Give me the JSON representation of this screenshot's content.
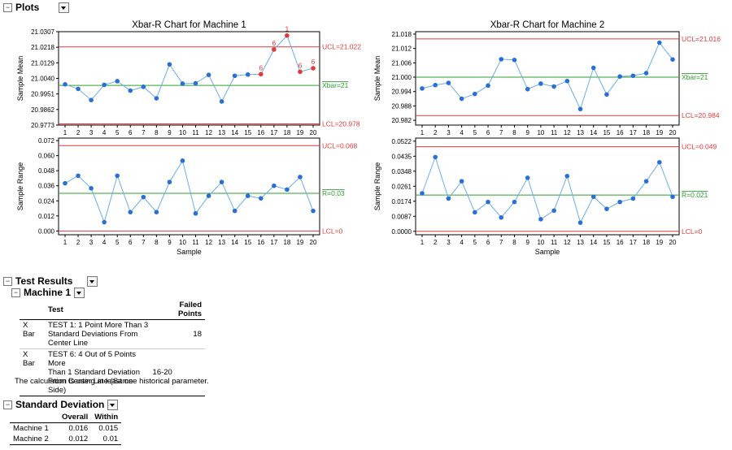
{
  "sections": {
    "plots": "Plots",
    "test_results": "Test Results",
    "standard_deviation": "Standard Deviation"
  },
  "test_results": {
    "group": "Machine 1",
    "headers": [
      "",
      "Test",
      "Failed Points"
    ],
    "rows": [
      {
        "chart": "X Bar",
        "test_lines": [
          "TEST 1: 1 Point More Than 3",
          "Standard Deviations From",
          "Center Line"
        ],
        "failed": "18"
      },
      {
        "chart": "X Bar",
        "test_lines": [
          "TEST 6: 4 Out of 5 Points More",
          "Than 1 Standard Deviation",
          "From Center Line (Same Side)"
        ],
        "failed": "16-20"
      }
    ],
    "note": "The calculation is using at least one historical parameter."
  },
  "std_dev": {
    "headers": [
      "",
      "Overall",
      "Within"
    ],
    "rows": [
      {
        "label": "Machine 1",
        "overall": "0.016",
        "within": "0.015"
      },
      {
        "label": "Machine 2",
        "overall": "0.012",
        "within": "0.01"
      }
    ]
  },
  "colors": {
    "point": "#2a6fd6",
    "line": "#6aaee8",
    "limit": "#e03a3a",
    "center": "#2ca02c",
    "fail": "#e03a3a"
  },
  "chart_data": [
    {
      "type": "line",
      "title": "Xbar-R Chart for Machine 1",
      "ylabel": "Sample Mean",
      "x": [
        1,
        2,
        3,
        4,
        5,
        6,
        7,
        8,
        9,
        10,
        11,
        12,
        13,
        14,
        15,
        16,
        17,
        18,
        19,
        20
      ],
      "values": [
        21.0006,
        20.998,
        20.9916,
        21.0003,
        21.0024,
        20.997,
        20.9992,
        20.9926,
        21.012,
        21.001,
        21.0012,
        21.006,
        20.9908,
        21.0055,
        21.0062,
        21.0064,
        21.0205,
        21.0285,
        21.0078,
        21.0098
      ],
      "yticks": [
        "20.9773",
        "20.9862",
        "20.9951",
        "21.0040",
        "21.0129",
        "21.0218",
        "21.0307"
      ],
      "ylim": [
        20.9773,
        21.0307
      ],
      "ucl": {
        "value": 21.022,
        "label": "UCL=21.022"
      },
      "center": {
        "value": 21.0,
        "label": "Xbar=21"
      },
      "lcl": {
        "value": 20.978,
        "label": "LCL=20.978"
      },
      "flags": [
        {
          "x": 16,
          "label": "6"
        },
        {
          "x": 17,
          "label": "6"
        },
        {
          "x": 18,
          "label": "1"
        },
        {
          "x": 19,
          "label": "6"
        },
        {
          "x": 20,
          "label": "6"
        }
      ]
    },
    {
      "type": "line",
      "title": "",
      "ylabel": "Sample Range",
      "xlabel": "Sample",
      "x": [
        1,
        2,
        3,
        4,
        5,
        6,
        7,
        8,
        9,
        10,
        11,
        12,
        13,
        14,
        15,
        16,
        17,
        18,
        19,
        20
      ],
      "values": [
        0.038,
        0.044,
        0.034,
        0.007,
        0.044,
        0.015,
        0.027,
        0.015,
        0.039,
        0.056,
        0.014,
        0.028,
        0.039,
        0.016,
        0.028,
        0.026,
        0.036,
        0.033,
        0.043,
        0.016
      ],
      "yticks": [
        "0.000",
        "0.012",
        "0.024",
        "0.036",
        "0.048",
        "0.060",
        "0.072"
      ],
      "ylim": [
        -0.003,
        0.074
      ],
      "ucl": {
        "value": 0.068,
        "label": "UCL=0.068"
      },
      "center": {
        "value": 0.03,
        "label": "R=0.03"
      },
      "lcl": {
        "value": 0.0,
        "label": "LCL=0"
      },
      "flags": []
    },
    {
      "type": "line",
      "title": "Xbar-R Chart for Machine 2",
      "ylabel": "Sample Mean",
      "x": [
        1,
        2,
        3,
        4,
        5,
        6,
        7,
        8,
        9,
        10,
        11,
        12,
        13,
        14,
        15,
        16,
        17,
        18,
        19,
        20
      ],
      "values": [
        20.9953,
        20.9967,
        20.9976,
        20.991,
        20.993,
        20.9965,
        21.0075,
        21.0072,
        20.995,
        20.9973,
        20.9961,
        20.9984,
        20.9867,
        21.0039,
        20.9928,
        21.0003,
        21.0006,
        21.0017,
        21.0144,
        21.0074
      ],
      "yticks": [
        "20.982",
        "20.988",
        "20.994",
        "21.000",
        "21.006",
        "21.012",
        "21.018"
      ],
      "ylim": [
        20.98,
        21.019
      ],
      "ucl": {
        "value": 21.016,
        "label": "UCL=21.016"
      },
      "center": {
        "value": 21.0,
        "label": "Xbar=21"
      },
      "lcl": {
        "value": 20.984,
        "label": "LCL=20.984"
      },
      "flags": []
    },
    {
      "type": "line",
      "title": "",
      "ylabel": "Sample Range",
      "xlabel": "Sample",
      "x": [
        1,
        2,
        3,
        4,
        5,
        6,
        7,
        8,
        9,
        10,
        11,
        12,
        13,
        14,
        15,
        16,
        17,
        18,
        19,
        20
      ],
      "values": [
        0.022,
        0.043,
        0.019,
        0.029,
        0.011,
        0.017,
        0.008,
        0.017,
        0.031,
        0.007,
        0.012,
        0.032,
        0.005,
        0.02,
        0.013,
        0.017,
        0.019,
        0.029,
        0.04,
        0.02
      ],
      "yticks": [
        "0.0000",
        "0.0087",
        "0.0174",
        "0.0261",
        "0.0348",
        "0.0435",
        "0.0522"
      ],
      "ylim": [
        -0.002,
        0.054
      ],
      "ucl": {
        "value": 0.049,
        "label": "UCL=0.049"
      },
      "center": {
        "value": 0.021,
        "label": "R=0.021"
      },
      "lcl": {
        "value": 0.0,
        "label": "LCL=0"
      },
      "flags": []
    }
  ]
}
